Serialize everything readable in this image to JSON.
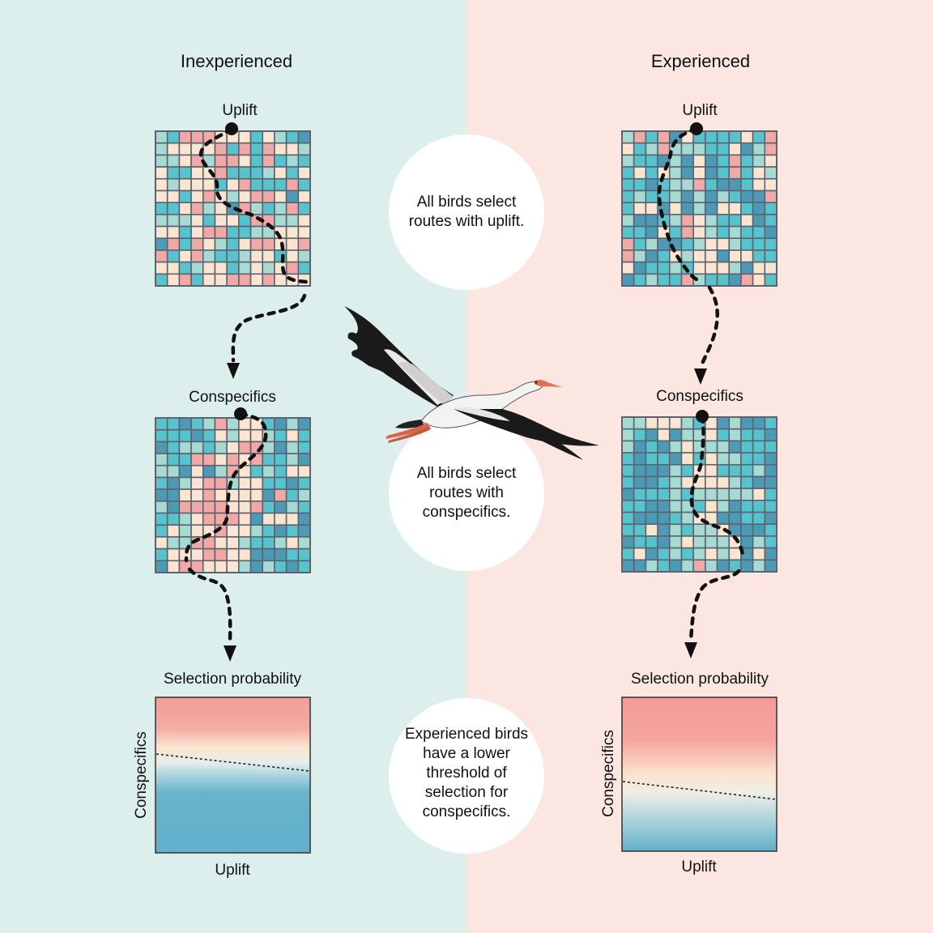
{
  "colors": {
    "left_bg": "#dcefec",
    "right_bg": "#fbe6e1",
    "cell_red": "#f2a8a5",
    "cell_cream": "#fbe4d0",
    "cell_mint": "#a6dad2",
    "cell_teal": "#57c3cd",
    "cell_blue": "#4c9ab6",
    "grid_line": "#5a6470",
    "path": "#111111"
  },
  "left": {
    "title": "Inexperienced",
    "uplift_label": "Uplift",
    "conspecifics_label": "Conspecifics",
    "selection_title": "Selection probability",
    "x_axis": "Uplift",
    "y_axis": "Conspecifics"
  },
  "right": {
    "title": "Experienced",
    "uplift_label": "Uplift",
    "conspecifics_label": "Conspecifics",
    "selection_title": "Selection probability",
    "x_axis": "Uplift",
    "y_axis": "Conspecifics"
  },
  "bubbles": [
    "All birds select routes with uplift.",
    "All birds select routes with conspecifics.",
    "Experienced birds have a lower threshold of selection for conspecifics."
  ],
  "illustration": "white-stork-in-flight"
}
